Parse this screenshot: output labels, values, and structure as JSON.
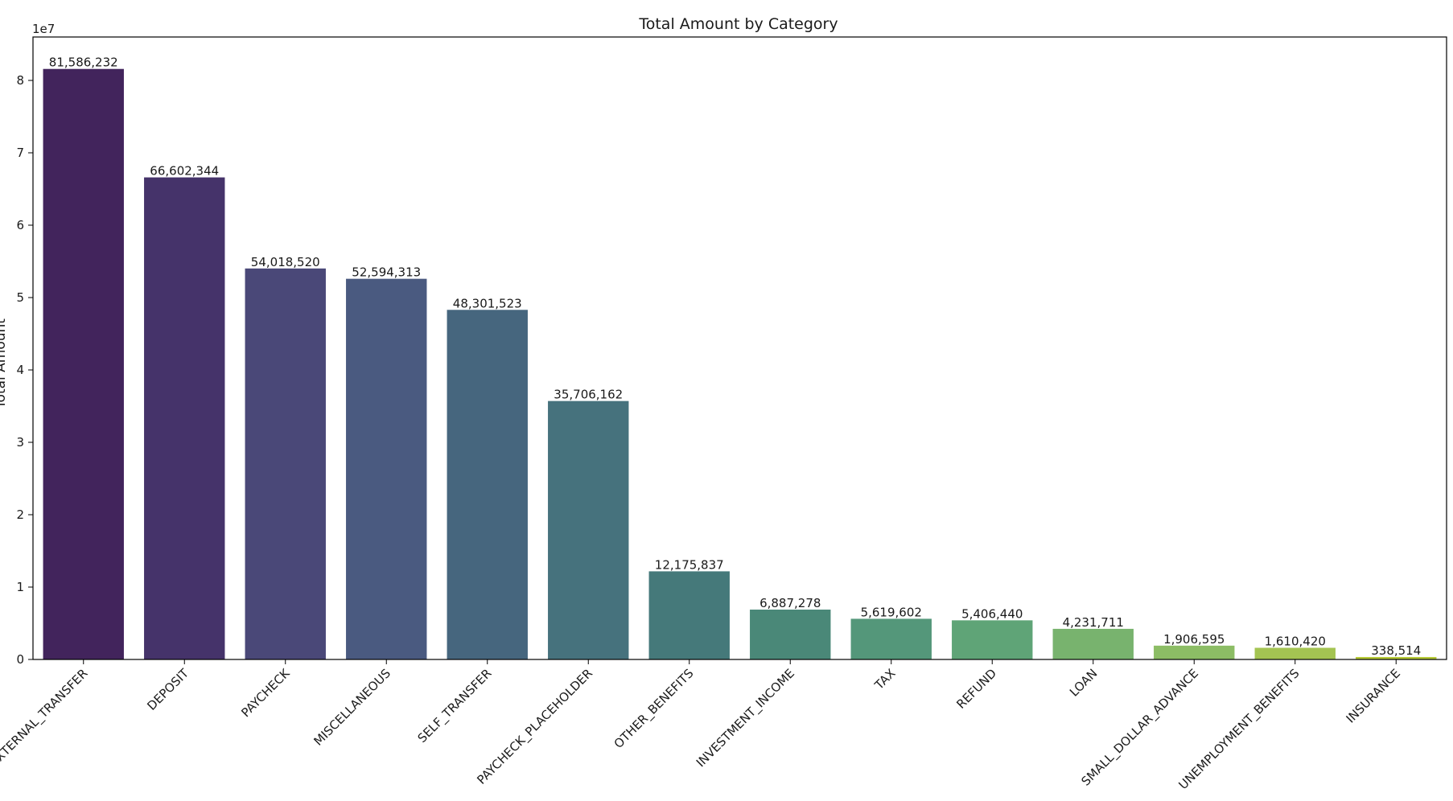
{
  "chart_data": {
    "type": "bar",
    "title": "Total Amount by Category",
    "xlabel": "",
    "ylabel": "Total Amount",
    "y_offset_text": "1e7",
    "ylim": [
      0,
      86000000
    ],
    "yticks": [
      {
        "value": 0,
        "label": "0"
      },
      {
        "value": 10000000,
        "label": "1"
      },
      {
        "value": 20000000,
        "label": "2"
      },
      {
        "value": 30000000,
        "label": "3"
      },
      {
        "value": 40000000,
        "label": "4"
      },
      {
        "value": 50000000,
        "label": "5"
      },
      {
        "value": 60000000,
        "label": "6"
      },
      {
        "value": 70000000,
        "label": "7"
      },
      {
        "value": 80000000,
        "label": "8"
      }
    ],
    "grid": false,
    "categories": [
      "EXTERNAL_TRANSFER",
      "DEPOSIT",
      "PAYCHECK",
      "MISCELLANEOUS",
      "SELF_TRANSFER",
      "PAYCHECK_PLACEHOLDER",
      "OTHER_BENEFITS",
      "INVESTMENT_INCOME",
      "TAX",
      "REFUND",
      "LOAN",
      "SMALL_DOLLAR_ADVANCE",
      "UNEMPLOYMENT_BENEFITS",
      "INSURANCE"
    ],
    "values": [
      81586232,
      66602344,
      54018520,
      52594313,
      48301523,
      35706162,
      12175837,
      6887278,
      5619602,
      5406440,
      4231711,
      1906595,
      1610420,
      338514
    ],
    "data_labels": [
      "81,586,232",
      "66,602,344",
      "54,018,520",
      "52,594,313",
      "48,301,523",
      "35,706,162",
      "12,175,837",
      "6,887,278",
      "5,619,602",
      "5,406,440",
      "4,231,711",
      "1,906,595",
      "1,610,420",
      "338,514"
    ],
    "colors": [
      "#42245c",
      "#45336a",
      "#4a4878",
      "#4a5a80",
      "#46667e",
      "#46727d",
      "#45797a",
      "#4a8878",
      "#54977a",
      "#5fa477",
      "#78b36e",
      "#8cbd65",
      "#a4c452",
      "#b5c934"
    ]
  }
}
